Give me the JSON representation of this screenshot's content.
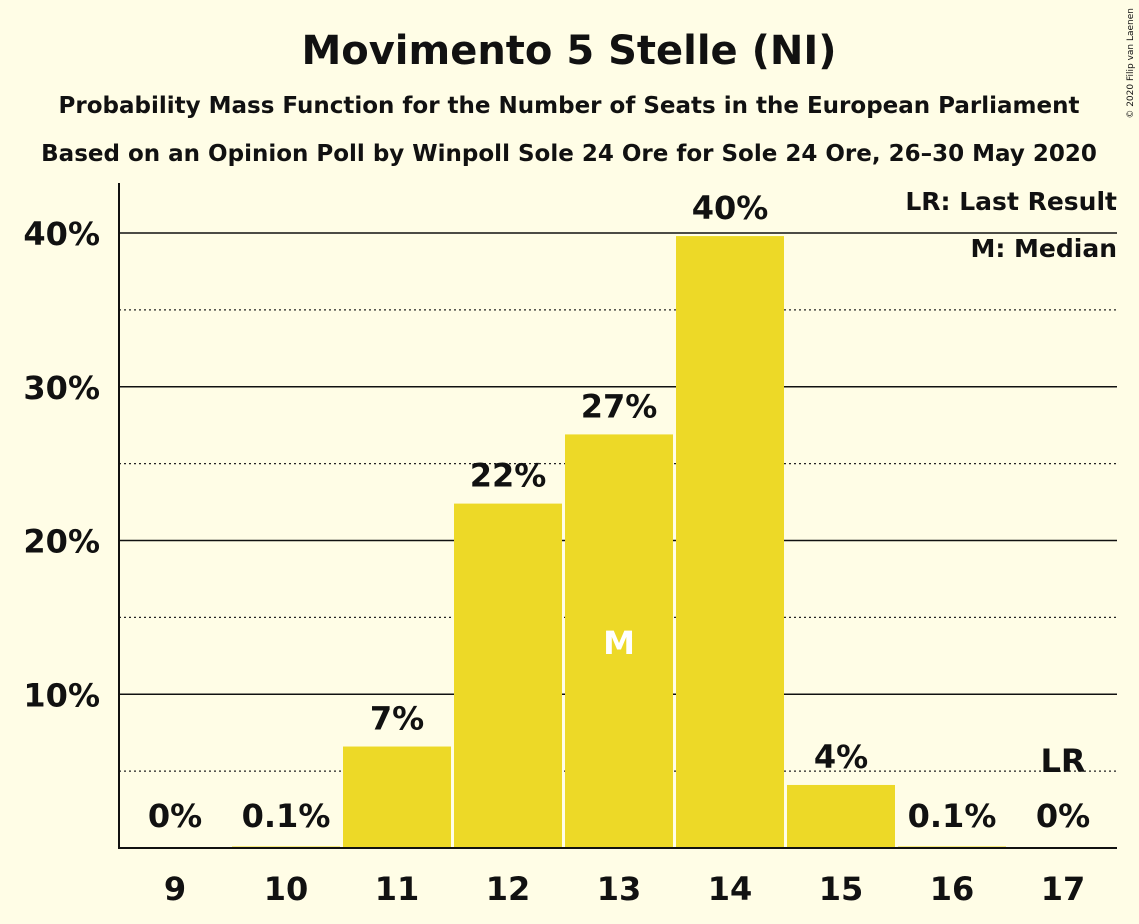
{
  "chart_data": {
    "type": "bar",
    "title": "Movimento 5 Stelle (NI)",
    "subtitle": "Probability Mass Function for the Number of Seats in the European Parliament",
    "subtitle2": "Based on an Opinion Poll by Winpoll Sole 24 Ore for Sole 24 Ore, 26–30 May 2020",
    "copyright": "© 2020 Filip van Laenen",
    "categories": [
      "9",
      "10",
      "11",
      "12",
      "13",
      "14",
      "15",
      "16",
      "17"
    ],
    "values": [
      0,
      0.1,
      6.6,
      22.4,
      26.9,
      39.8,
      4.1,
      0.1,
      0
    ],
    "value_labels": [
      "0%",
      "0.1%",
      "7%",
      "22%",
      "27%",
      "40%",
      "4%",
      "0.1%",
      "0%"
    ],
    "ylim": [
      0,
      43
    ],
    "yticks": [
      10,
      20,
      30,
      40
    ],
    "ytick_labels": [
      "10%",
      "20%",
      "30%",
      "40%"
    ],
    "minor_gridlines": [
      5,
      15,
      25,
      35
    ],
    "median_category": "13",
    "median_marker": "M",
    "last_result_category": "17",
    "last_result_marker": "LR",
    "legend": [
      "LR: Last Result",
      "M: Median"
    ],
    "legend_position": "top-right",
    "bar_color": "#EDD927",
    "background_color": "#FFFDE6"
  }
}
